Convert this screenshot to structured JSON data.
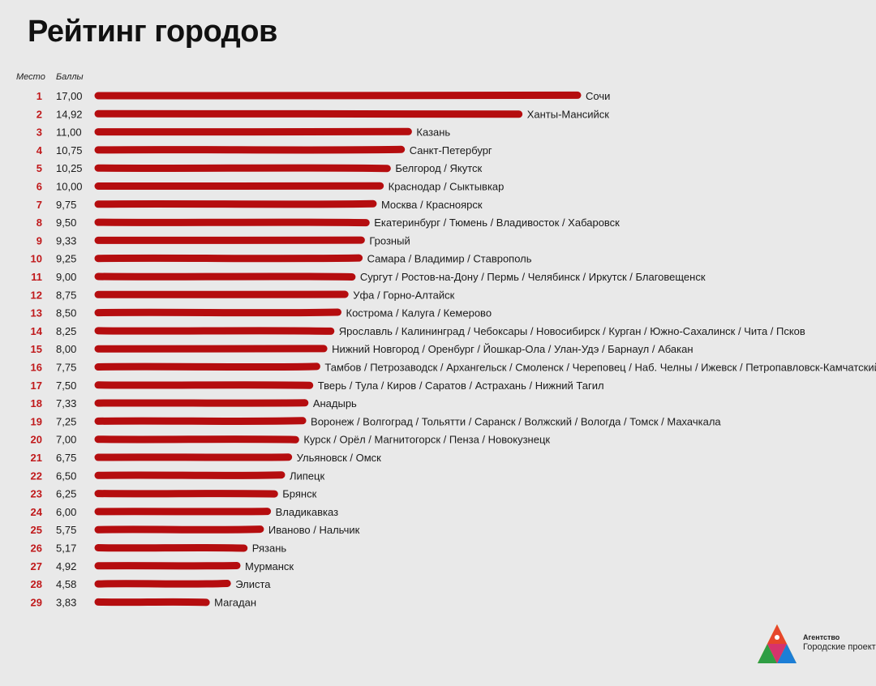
{
  "title": "Рейтинг городов",
  "headers": {
    "rank": "Место",
    "score": "Баллы"
  },
  "logo": {
    "line1": "Агентство",
    "line2": "Городские проекты"
  },
  "colors": {
    "bar": "#b50d0f",
    "rank": "#c0191b",
    "background": "#e9e9e9"
  },
  "chart_data": {
    "type": "bar",
    "orientation": "horizontal",
    "title": "Рейтинг городов",
    "xlim": [
      0,
      17
    ],
    "grid": false,
    "legend": "none",
    "rows": [
      {
        "rank": "1",
        "score": "17,00",
        "value": 17.0,
        "label": "Сочи"
      },
      {
        "rank": "2",
        "score": "14,92",
        "value": 14.92,
        "label": "Ханты-Мансийск"
      },
      {
        "rank": "3",
        "score": "11,00",
        "value": 11.0,
        "label": "Казань"
      },
      {
        "rank": "4",
        "score": "10,75",
        "value": 10.75,
        "label": "Санкт-Петербург"
      },
      {
        "rank": "5",
        "score": "10,25",
        "value": 10.25,
        "label": "Белгород / Якутск"
      },
      {
        "rank": "6",
        "score": "10,00",
        "value": 10.0,
        "label": "Краснодар / Сыктывкар"
      },
      {
        "rank": "7",
        "score": "9,75",
        "value": 9.75,
        "label": "Москва / Красноярск"
      },
      {
        "rank": "8",
        "score": "9,50",
        "value": 9.5,
        "label": "Екатеринбург / Тюмень / Владивосток / Хабаровск"
      },
      {
        "rank": "9",
        "score": "9,33",
        "value": 9.33,
        "label": "Грозный"
      },
      {
        "rank": "10",
        "score": "9,25",
        "value": 9.25,
        "label": "Самара / Владимир / Ставрополь"
      },
      {
        "rank": "11",
        "score": "9,00",
        "value": 9.0,
        "label": "Сургут / Ростов-на-Дону / Пермь / Челябинск / Иркутск / Благовещенск"
      },
      {
        "rank": "12",
        "score": "8,75",
        "value": 8.75,
        "label": "Уфа / Горно-Алтайск"
      },
      {
        "rank": "13",
        "score": "8,50",
        "value": 8.5,
        "label": "Кострома / Калуга / Кемерово"
      },
      {
        "rank": "14",
        "score": "8,25",
        "value": 8.25,
        "label": "Ярославль / Калининград / Чебоксары / Новосибирск / Курган / Южно-Сахалинск / Чита / Псков"
      },
      {
        "rank": "15",
        "score": "8,00",
        "value": 8.0,
        "label": "Нижний Новгород / Оренбург / Йошкар-Ола / Улан-Удэ / Барнаул / Абакан"
      },
      {
        "rank": "16",
        "score": "7,75",
        "value": 7.75,
        "label": "Тамбов / Петрозаводск / Архангельск / Смоленск / Череповец / Наб. Челны / Ижевск / Петропавловск-Камчатский"
      },
      {
        "rank": "17",
        "score": "7,50",
        "value": 7.5,
        "label": "Тверь / Тула / Киров / Саратов / Астрахань / Нижний Тагил"
      },
      {
        "rank": "18",
        "score": "7,33",
        "value": 7.33,
        "label": "Анадырь"
      },
      {
        "rank": "19",
        "score": "7,25",
        "value": 7.25,
        "label": "Воронеж / Волгоград / Тольятти / Саранск / Волжский / Вологда / Томск / Махачкала"
      },
      {
        "rank": "20",
        "score": "7,00",
        "value": 7.0,
        "label": "Курск / Орёл / Магнитогорск / Пенза / Новокузнецк"
      },
      {
        "rank": "21",
        "score": "6,75",
        "value": 6.75,
        "label": "Ульяновск / Омск"
      },
      {
        "rank": "22",
        "score": "6,50",
        "value": 6.5,
        "label": "Липецк"
      },
      {
        "rank": "23",
        "score": "6,25",
        "value": 6.25,
        "label": "Брянск"
      },
      {
        "rank": "24",
        "score": "6,00",
        "value": 6.0,
        "label": "Владикавказ"
      },
      {
        "rank": "25",
        "score": "5,75",
        "value": 5.75,
        "label": "Иваново / Нальчик"
      },
      {
        "rank": "26",
        "score": "5,17",
        "value": 5.17,
        "label": "Рязань"
      },
      {
        "rank": "27",
        "score": "4,92",
        "value": 4.92,
        "label": "Мурманск"
      },
      {
        "rank": "28",
        "score": "4,58",
        "value": 4.58,
        "label": "Элиста"
      },
      {
        "rank": "29",
        "score": "3,83",
        "value": 3.83,
        "label": "Магадан"
      }
    ]
  }
}
